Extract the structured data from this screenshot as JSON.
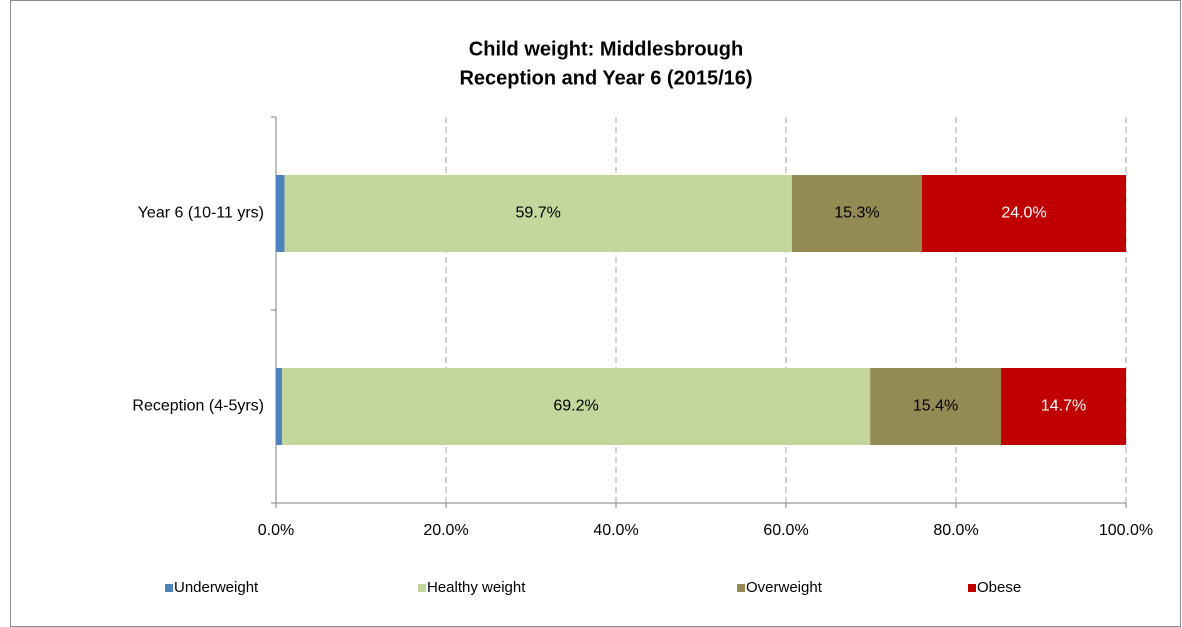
{
  "chart_data": {
    "type": "stacked-barh",
    "title": [
      "Child weight: Middlesbrough",
      "Reception and Year 6 (2015/16)"
    ],
    "categories": [
      "Year 6 (10-11 yrs)",
      "Reception (4-5yrs)"
    ],
    "series": [
      {
        "name": "Underweight",
        "color": "#4f81bd",
        "values": [
          1.0,
          0.7
        ]
      },
      {
        "name": "Healthy weight",
        "color": "#c3d69b",
        "values": [
          59.7,
          69.2
        ],
        "value_labels": [
          "59.7%",
          "69.2%"
        ],
        "label_color": "#000000"
      },
      {
        "name": "Overweight",
        "color": "#948a54",
        "values": [
          15.3,
          15.4
        ],
        "value_labels": [
          "15.3%",
          "15.4%"
        ],
        "label_color": "#000000"
      },
      {
        "name": "Obese",
        "color": "#c00000",
        "values": [
          24.0,
          14.7
        ],
        "value_labels": [
          "24.0%",
          "14.7%"
        ],
        "label_color": "#ffffff"
      }
    ],
    "xlim": [
      0,
      100
    ],
    "xticks": [
      {
        "value": 0,
        "label": "0.0%"
      },
      {
        "value": 20,
        "label": "20.0%"
      },
      {
        "value": 40,
        "label": "40.0%"
      },
      {
        "value": 60,
        "label": "60.0%"
      },
      {
        "value": 80,
        "label": "80.0%"
      },
      {
        "value": 100,
        "label": "100.0%"
      }
    ],
    "grid": true,
    "legend": "bottom"
  }
}
